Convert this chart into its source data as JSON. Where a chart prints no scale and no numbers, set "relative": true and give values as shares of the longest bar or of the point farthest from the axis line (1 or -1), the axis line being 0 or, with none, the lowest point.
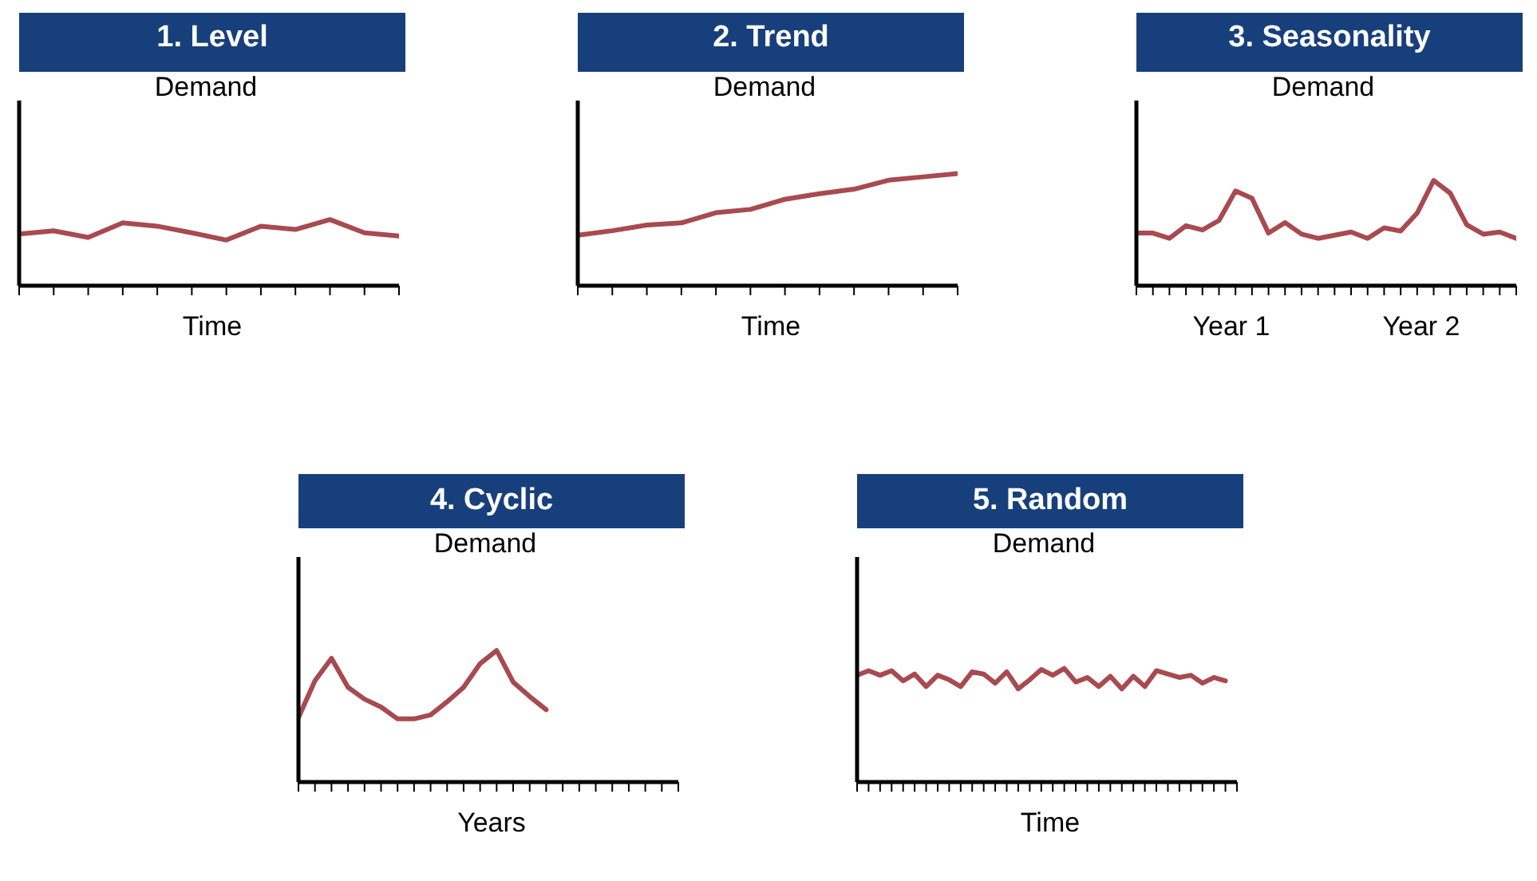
{
  "chart_data": [
    {
      "type": "line",
      "title": "1. Level",
      "ylabel": "Demand",
      "xlabel": "Time",
      "relative": true,
      "categories": [
        null,
        null,
        null,
        null,
        null,
        null,
        null,
        null,
        null,
        null,
        null,
        null
      ],
      "series": [
        {
          "color": "#a84a4f",
          "values": [
            0.78,
            0.83,
            0.73,
            0.95,
            0.9,
            0.8,
            0.69,
            0.9,
            0.85,
            1,
            0.8,
            0.75
          ]
        }
      ]
    },
    {
      "type": "line",
      "title": "2. Trend",
      "ylabel": "Demand",
      "xlabel": "Time",
      "relative": true,
      "categories": [
        null,
        null,
        null,
        null,
        null,
        null,
        null,
        null,
        null,
        null,
        null,
        null
      ],
      "series": [
        {
          "color": "#a84a4f",
          "values": [
            0.45,
            0.49,
            0.54,
            0.56,
            0.65,
            0.68,
            0.77,
            0.82,
            0.86,
            0.94,
            0.97,
            1
          ]
        }
      ]
    },
    {
      "type": "line",
      "title": "3. Seasonality",
      "ylabel": "Demand",
      "relative": true,
      "annotations": [
        "Year 1",
        "Year 2"
      ],
      "categories": [
        null,
        null,
        null,
        null,
        null,
        null,
        null,
        null,
        null,
        null,
        null,
        null,
        null,
        null,
        null,
        null,
        null,
        null,
        null,
        null,
        null,
        null,
        null,
        null
      ],
      "series": [
        {
          "color": "#a84a4f",
          "values": [
            0.5,
            0.5,
            0.45,
            0.57,
            0.53,
            0.62,
            0.9,
            0.83,
            0.5,
            0.6,
            0.49,
            0.45,
            0.48,
            0.51,
            0.45,
            0.55,
            0.52,
            0.69,
            1,
            0.88,
            0.58,
            0.49,
            0.51,
            0.45
          ]
        }
      ]
    },
    {
      "type": "line",
      "title": "4. Cyclic",
      "ylabel": "Demand",
      "xlabel": "Years",
      "relative": true,
      "categories": [
        null,
        null,
        null,
        null,
        null,
        null,
        null,
        null,
        null,
        null,
        null,
        null,
        null,
        null,
        null,
        null,
        null,
        null,
        null,
        null,
        null,
        null,
        null,
        null
      ],
      "series": [
        {
          "color": "#a84a4f",
          "values": [
            0.49,
            0.77,
            0.94,
            0.72,
            0.63,
            0.57,
            0.48,
            0.48,
            0.51,
            0.61,
            0.72,
            0.9,
            1,
            0.76,
            0.65,
            0.55,
            null,
            null,
            null,
            null,
            null,
            null,
            null,
            null
          ]
        }
      ]
    },
    {
      "type": "line",
      "title": "5. Random",
      "ylabel": "Demand",
      "xlabel": "Time",
      "relative": true,
      "categories": [
        null,
        null,
        null,
        null,
        null,
        null,
        null,
        null,
        null,
        null,
        null,
        null,
        null,
        null,
        null,
        null,
        null,
        null,
        null,
        null,
        null,
        null,
        null,
        null,
        null,
        null,
        null,
        null,
        null,
        null,
        null,
        null,
        null,
        null
      ],
      "series": [
        {
          "color": "#a84a4f",
          "values": [
            0.94,
            0.98,
            0.94,
            0.98,
            0.89,
            0.95,
            0.84,
            0.94,
            0.9,
            0.84,
            0.97,
            0.95,
            0.87,
            0.97,
            0.82,
            0.9,
            0.99,
            0.94,
            1,
            0.88,
            0.92,
            0.84,
            0.93,
            0.82,
            0.93,
            0.84,
            0.98,
            0.95,
            0.92,
            0.94,
            0.87,
            0.92,
            0.89,
            null
          ]
        }
      ]
    }
  ]
}
